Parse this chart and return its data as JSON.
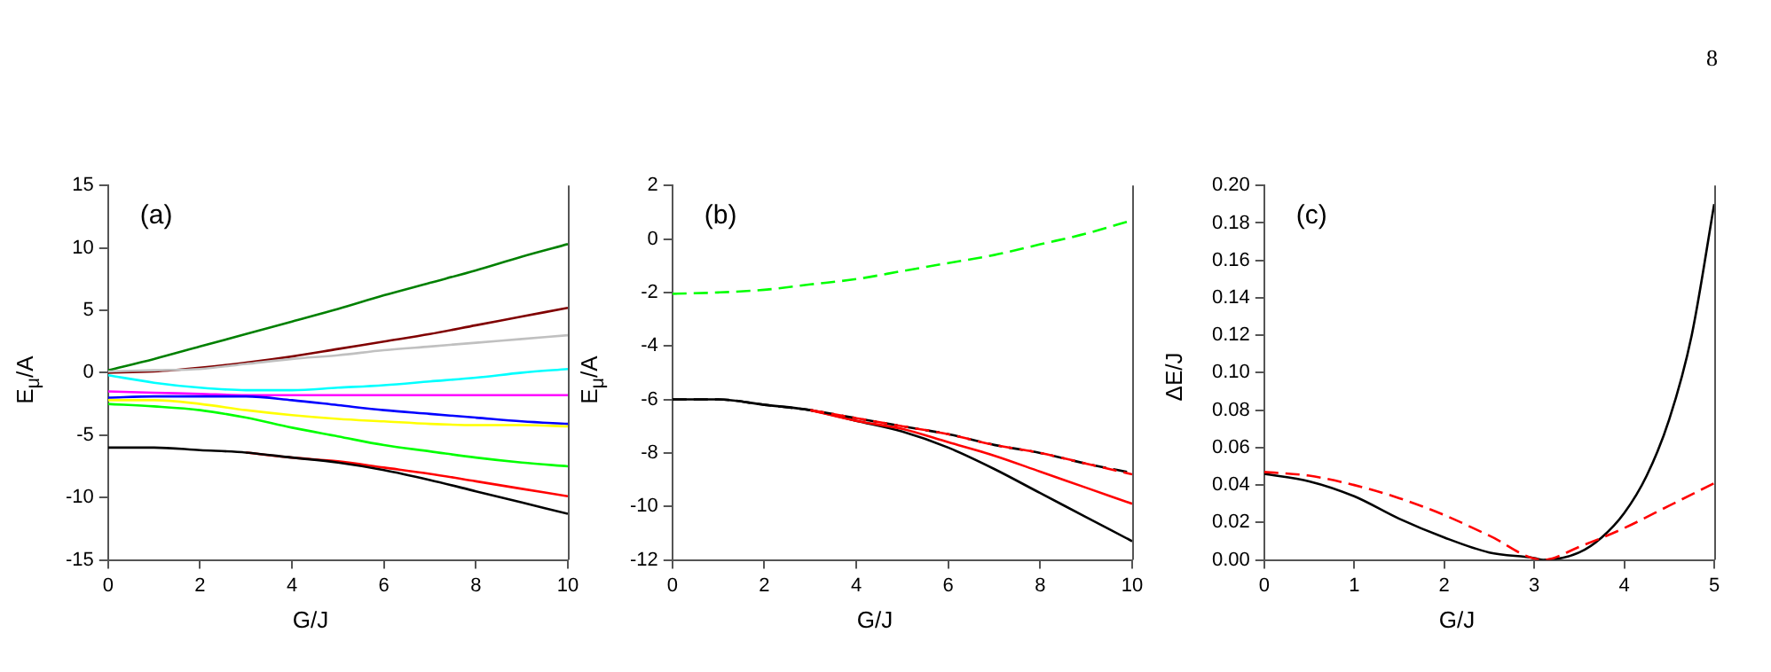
{
  "chart_data": [
    {
      "type": "line",
      "annotations": [
        "(a)"
      ],
      "xlabel": "G/J",
      "ylabel": "E$_{μ}$/A",
      "xlim": [
        0,
        10
      ],
      "xticks": [
        0,
        2,
        4,
        6,
        8,
        10
      ],
      "ylim": [
        -15,
        15
      ],
      "yticks": [
        -15,
        -10,
        -5,
        0,
        5,
        10,
        15
      ],
      "grid": false,
      "legend": false,
      "marker": "none",
      "line_style": "solid",
      "x": [
        0,
        1,
        2,
        3,
        4,
        5,
        6,
        7,
        8,
        9,
        10
      ],
      "series": [
        {
          "color": "#008000",
          "values": [
            0.2,
            1.1,
            2.1,
            3.1,
            4.1,
            5.1,
            6.2,
            7.2,
            8.2,
            9.3,
            10.3
          ]
        },
        {
          "color": "#800000",
          "values": [
            0,
            0.1,
            0.4,
            0.8,
            1.3,
            1.9,
            2.5,
            3.1,
            3.8,
            4.5,
            5.2
          ]
        },
        {
          "color": "#c0c0c0",
          "values": [
            0.1,
            0.2,
            0.3,
            0.7,
            1.1,
            1.4,
            1.8,
            2.1,
            2.4,
            2.7,
            3.0
          ]
        },
        {
          "color": "#00ffff",
          "values": [
            -0.2,
            -0.8,
            -1.2,
            -1.4,
            -1.4,
            -1.2,
            -1.0,
            -0.7,
            -0.4,
            0,
            0.3
          ]
        },
        {
          "color": "#ff00ff",
          "values": [
            -1.5,
            -1.6,
            -1.7,
            -1.8,
            -1.8,
            -1.8,
            -1.8,
            -1.8,
            -1.8,
            -1.8,
            -1.8
          ]
        },
        {
          "color": "#0000ff",
          "values": [
            -2.0,
            -1.9,
            -1.9,
            -1.9,
            -2.2,
            -2.6,
            -3.0,
            -3.3,
            -3.6,
            -3.9,
            -4.1
          ]
        },
        {
          "color": "#ffff00",
          "values": [
            -2.2,
            -2.2,
            -2.5,
            -3.0,
            -3.4,
            -3.7,
            -3.9,
            -4.1,
            -4.2,
            -4.2,
            -4.3
          ]
        },
        {
          "color": "#00ff00",
          "values": [
            -2.5,
            -2.7,
            -3.0,
            -3.6,
            -4.4,
            -5.1,
            -5.8,
            -6.3,
            -6.8,
            -7.2,
            -7.5
          ]
        },
        {
          "color": "#ff0000",
          "values": [
            null,
            null,
            null,
            -6.4,
            -6.8,
            -7.1,
            -7.6,
            -8.1,
            -8.7,
            -9.3,
            -9.9
          ]
        },
        {
          "color": "#000000",
          "values": [
            -6.0,
            -6.0,
            -6.2,
            -6.4,
            -6.8,
            -7.2,
            -7.8,
            -8.6,
            -9.5,
            -10.4,
            -11.3
          ]
        }
      ]
    },
    {
      "type": "line",
      "annotations": [
        "(b)"
      ],
      "xlabel": "G/J",
      "ylabel": "E$_{μ}$/A",
      "xlim": [
        0,
        10
      ],
      "xticks": [
        0,
        2,
        4,
        6,
        8,
        10
      ],
      "ylim": [
        -12,
        2
      ],
      "yticks": [
        -12,
        -10,
        -8,
        -6,
        -4,
        -2,
        0,
        2
      ],
      "grid": false,
      "legend": false,
      "marker": "none",
      "line_style": "solid",
      "x": [
        0,
        1,
        2,
        3,
        4,
        5,
        6,
        7,
        8,
        9,
        10
      ],
      "series": [
        {
          "color": "#00ff00",
          "line_style": "dashed",
          "values": [
            -2.05,
            -2.0,
            -1.9,
            -1.7,
            -1.5,
            -1.2,
            -0.9,
            -0.6,
            -0.2,
            0.2,
            0.7
          ]
        },
        {
          "color": "#000000",
          "values": [
            -6.0,
            -6.0,
            -6.2,
            -6.4,
            -6.8,
            -7.2,
            -7.8,
            -8.6,
            -9.5,
            -10.4,
            -11.3
          ]
        },
        {
          "color": "#ff0000",
          "values": [
            null,
            null,
            null,
            -6.4,
            -6.8,
            -7.1,
            -7.6,
            -8.1,
            -8.7,
            -9.3,
            -9.9
          ]
        },
        {
          "color": "#000000",
          "line_style": "dashed",
          "values": [
            -6.0,
            -6.0,
            -6.2,
            -6.4,
            -6.7,
            -7.0,
            -7.3,
            -7.7,
            -8.0,
            -8.4,
            -8.75
          ]
        },
        {
          "color": "#ff0000",
          "line_style": "dashed",
          "values": [
            null,
            null,
            null,
            -6.4,
            -6.7,
            -7.0,
            -7.3,
            -7.7,
            -8.0,
            -8.4,
            -8.8
          ]
        }
      ]
    },
    {
      "type": "line",
      "annotations": [
        "(c)",
        "8"
      ],
      "xlabel": "G/J",
      "ylabel": "ΔE/J",
      "xlim": [
        0,
        5
      ],
      "xticks": [
        0,
        1,
        2,
        3,
        4,
        5
      ],
      "ylim": [
        0,
        0.2
      ],
      "yticks": [
        {
          "value": 0,
          "label": "0.00"
        },
        {
          "value": 0.02,
          "label": "0.02"
        },
        {
          "value": 0.04,
          "label": "0.04"
        },
        {
          "value": 0.06,
          "label": "0.06"
        },
        {
          "value": 0.08,
          "label": "0.08"
        },
        {
          "value": 0.1,
          "label": "0.10"
        },
        {
          "value": 0.12,
          "label": "0.12"
        },
        {
          "value": 0.14,
          "label": "0.14"
        },
        {
          "value": 0.16,
          "label": "0.16"
        },
        {
          "value": 0.18,
          "label": "0.18"
        },
        {
          "value": 0.2,
          "label": "0.20"
        }
      ],
      "grid": false,
      "legend": false,
      "marker": "none",
      "line_style": "solid",
      "series": [
        {
          "color": "#000000",
          "x": [
            0,
            0.5,
            1,
            1.5,
            2,
            2.5,
            3,
            3.1,
            3.5,
            3.75,
            4,
            4.25,
            4.5,
            4.75,
            5
          ],
          "values": [
            0.046,
            0.042,
            0.034,
            0.022,
            0.012,
            0.004,
            0.001,
            0,
            0.004,
            0.012,
            0.025,
            0.045,
            0.075,
            0.12,
            0.19
          ]
        },
        {
          "color": "#ff0000",
          "line_style": "dashed",
          "x": [
            0,
            0.5,
            1,
            1.5,
            2,
            2.5,
            3.1,
            3.5,
            4,
            4.5,
            5
          ],
          "values": [
            0.047,
            0.045,
            0.04,
            0.033,
            0.024,
            0.013,
            0,
            0.007,
            0.017,
            0.029,
            0.041
          ]
        }
      ]
    }
  ]
}
